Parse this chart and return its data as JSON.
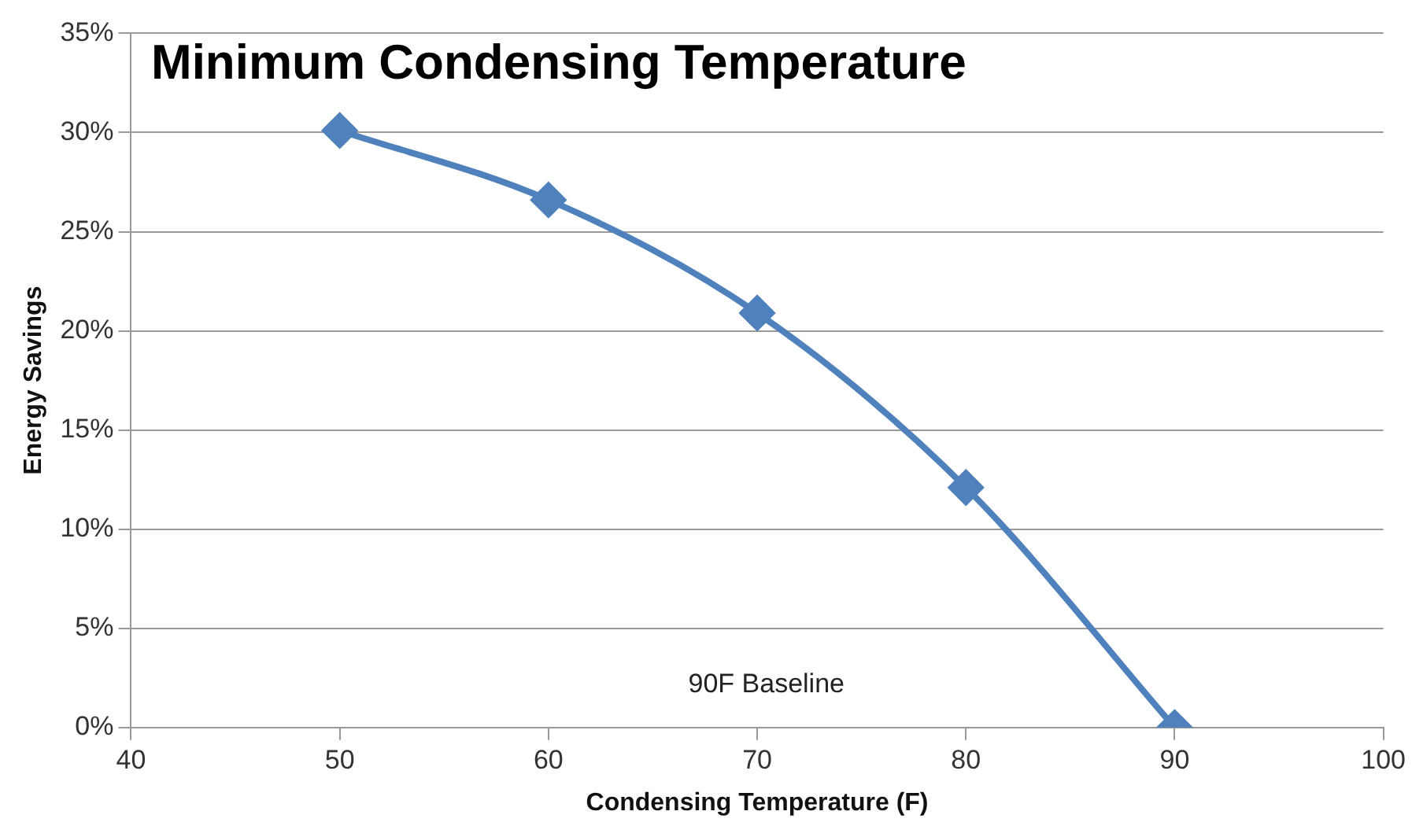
{
  "chart_data": {
    "type": "line",
    "title": "Minimum Condensing Temperature",
    "xlabel": "Condensing Temperature (F)",
    "ylabel": "Energy Savings",
    "x": [
      50,
      60,
      70,
      80,
      90
    ],
    "series": [
      {
        "color": "#4f81bd",
        "values": [
          30.1,
          26.6,
          20.9,
          12.1,
          0
        ]
      }
    ],
    "xlim": [
      40,
      100
    ],
    "xticks": [
      40,
      50,
      60,
      70,
      80,
      90,
      100
    ],
    "ylim": [
      0,
      35
    ],
    "yticks": [
      {
        "value": 0,
        "label": "0%"
      },
      {
        "value": 5,
        "label": "5%"
      },
      {
        "value": 10,
        "label": "10%"
      },
      {
        "value": 15,
        "label": "15%"
      },
      {
        "value": 20,
        "label": "20%"
      },
      {
        "value": 25,
        "label": "25%"
      },
      {
        "value": 30,
        "label": "30%"
      },
      {
        "value": 35,
        "label": "35%"
      }
    ],
    "grid": "y",
    "legend": false,
    "marker": "diamond",
    "line_style": "solid",
    "annotations": [
      "90F Baseline"
    ]
  }
}
